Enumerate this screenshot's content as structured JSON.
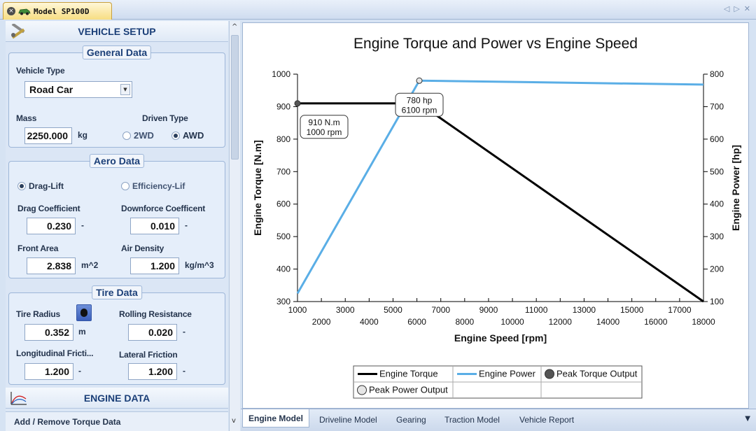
{
  "document_tab": {
    "title": "Model SP100D",
    "close_icon": "×"
  },
  "window_controls": {
    "prev": "◁",
    "next": "▷",
    "close": "✕"
  },
  "vehicle_setup": {
    "title": "VEHICLE SETUP",
    "general": {
      "title": "General Data",
      "vehicle_type_label": "Vehicle Type",
      "vehicle_type_value": "Road Car",
      "mass_label": "Mass",
      "mass_value": "2250.000",
      "mass_unit": "kg",
      "driven_type_label": "Driven Type",
      "opt_2wd": "2WD",
      "opt_awd": "AWD",
      "selected": "AWD"
    },
    "aero": {
      "title": "Aero Data",
      "opt_drag_lift": "Drag-Lift",
      "opt_efficiency": "Efficiency-Lif",
      "drag_coeff_label": "Drag Coefficient",
      "drag_coeff_value": "0.230",
      "drag_coeff_unit": "-",
      "downforce_label": "Downforce Coefficent",
      "downforce_value": "0.010",
      "downforce_unit": "-",
      "front_area_label": "Front Area",
      "front_area_value": "2.838",
      "front_area_unit": "m^2",
      "air_density_label": "Air Density",
      "air_density_value": "1.200",
      "air_density_unit": "kg/m^3"
    },
    "tire": {
      "title": "Tire Data",
      "radius_label": "Tire Radius",
      "radius_value": "0.352",
      "radius_unit": "m",
      "rolling_label": "Rolling Resistance",
      "rolling_value": "0.020",
      "rolling_unit": "-",
      "long_friction_label": "Longitudinal Fricti...",
      "long_friction_value": "1.200",
      "long_friction_unit": "-",
      "lat_friction_label": "Lateral Friction",
      "lat_friction_value": "1.200",
      "lat_friction_unit": "-"
    }
  },
  "engine_data": {
    "title": "ENGINE DATA",
    "link": "Add / Remove Torque Data"
  },
  "scroll": {
    "up": "^",
    "down": "v"
  },
  "bottom_tabs": [
    "Engine Model",
    "Driveline Model",
    "Gearing",
    "Traction Model",
    "Vehicle Report"
  ],
  "bottom_tabs_menu": "▼",
  "chart_data": {
    "type": "line",
    "title": "Engine Torque and Power vs Engine Speed",
    "xlabel": "Engine Speed [rpm]",
    "ylabel": "Engine Torque [N.m]",
    "y2label": "Engine Power [hp]",
    "xlim": [
      1000,
      18000
    ],
    "ylim": [
      300,
      1000
    ],
    "y2lim": [
      100,
      800
    ],
    "xticks_top": [
      1000,
      3000,
      5000,
      7000,
      9000,
      11000,
      13000,
      15000,
      17000
    ],
    "xticks_bottom": [
      2000,
      4000,
      6000,
      8000,
      10000,
      12000,
      14000,
      16000,
      18000
    ],
    "yticks": [
      300,
      400,
      500,
      600,
      700,
      800,
      900,
      1000
    ],
    "y2ticks": [
      100,
      200,
      300,
      400,
      500,
      600,
      700,
      800
    ],
    "series": [
      {
        "name": "Engine Torque",
        "axis": "left",
        "color": "#000000",
        "x": [
          1000,
          6100,
          18000
        ],
        "y": [
          910,
          910,
          300
        ]
      },
      {
        "name": "Engine Power",
        "axis": "right",
        "color": "#5aaee6",
        "x": [
          1000,
          6100,
          18000
        ],
        "y": [
          125,
          780,
          768
        ]
      }
    ],
    "markers": [
      {
        "name": "Peak Torque Output",
        "axis": "left",
        "x": 1000,
        "y": 910,
        "fill": "#555555",
        "label_lines": [
          "910 N.m",
          "1000 rpm"
        ]
      },
      {
        "name": "Peak Power Output",
        "axis": "right",
        "x": 6100,
        "y": 780,
        "fill": "#e6e6e6",
        "label_lines": [
          "780 hp",
          "6100 rpm"
        ]
      }
    ],
    "legend": [
      "Engine Torque",
      "Engine Power",
      "Peak Torque Output",
      "Peak Power Output"
    ],
    "legend_position": "bottom-center",
    "grid": false
  }
}
